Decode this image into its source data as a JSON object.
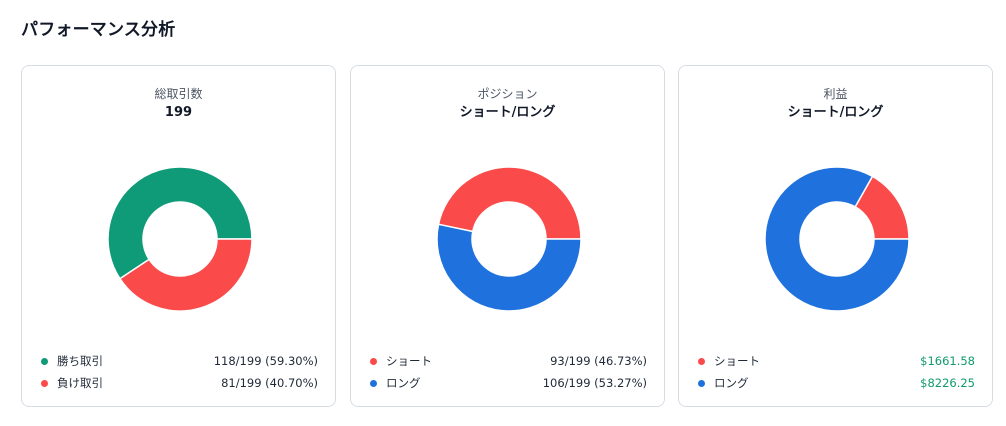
{
  "page": {
    "title": "パフォーマンス分析"
  },
  "colors": {
    "win": "#0f9a78",
    "loss": "#fa4a4a",
    "short": "#fa4a4a",
    "long": "#1f72de",
    "profit_text": "#0f9a6e"
  },
  "cards": [
    {
      "title": "総取引数",
      "value": "199",
      "legend": [
        {
          "label": "勝ち取引",
          "value": "118/199 (59.30%)",
          "color": "#0f9a78"
        },
        {
          "label": "負け取引",
          "value": "81/199 (40.70%)",
          "color": "#fa4a4a"
        }
      ]
    },
    {
      "title": "ポジション",
      "value": "ショート/ロング",
      "legend": [
        {
          "label": "ショート",
          "value": "93/199 (46.73%)",
          "color": "#fa4a4a"
        },
        {
          "label": "ロング",
          "value": "106/199 (53.27%)",
          "color": "#1f72de"
        }
      ]
    },
    {
      "title": "利益",
      "value": "ショート/ロング",
      "legend": [
        {
          "label": "ショート",
          "value": "$1661.58",
          "color": "#fa4a4a"
        },
        {
          "label": "ロング",
          "value": "$8226.25",
          "color": "#1f72de"
        }
      ]
    }
  ],
  "chart_data": [
    {
      "type": "pie",
      "title": "総取引数",
      "categories": [
        "勝ち取引",
        "負け取引"
      ],
      "values": [
        118,
        81
      ],
      "colors": [
        "#0f9a78",
        "#fa4a4a"
      ],
      "legend": "bottom"
    },
    {
      "type": "pie",
      "title": "ポジション",
      "categories": [
        "ショート",
        "ロング"
      ],
      "values": [
        93,
        106
      ],
      "colors": [
        "#fa4a4a",
        "#1f72de"
      ],
      "legend": "bottom"
    },
    {
      "type": "pie",
      "title": "利益",
      "categories": [
        "ショート",
        "ロング"
      ],
      "values": [
        1661.58,
        8226.25
      ],
      "colors": [
        "#fa4a4a",
        "#1f72de"
      ],
      "legend": "bottom"
    }
  ]
}
